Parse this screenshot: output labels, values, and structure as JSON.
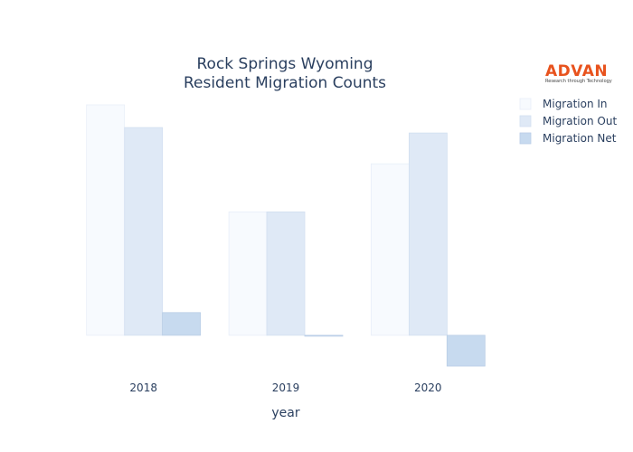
{
  "logo": {
    "name": "ADVAN",
    "tagline": "Research through Technology",
    "color": "#e8531e"
  },
  "chart_data": {
    "type": "bar",
    "title_lines": [
      "Rock Springs Wyoming",
      "Resident Migration Counts"
    ],
    "xlabel": "year",
    "ylabel": "",
    "categories": [
      "2018",
      "2019",
      "2020"
    ],
    "ylim": [
      -34,
      255
    ],
    "grid": false,
    "legend_position": "top-right",
    "series": [
      {
        "name": "Migration In",
        "values": [
          254,
          136,
          189
        ],
        "color": "#f7fafe",
        "stroke": "#e8eef8"
      },
      {
        "name": "Migration Out",
        "values": [
          229,
          136,
          223
        ],
        "color": "#dfe9f6",
        "stroke": "#d2dff0"
      },
      {
        "name": "Migration Net",
        "values": [
          25,
          0,
          -34
        ],
        "color": "#c7daef",
        "stroke": "#b9cde6"
      }
    ]
  }
}
